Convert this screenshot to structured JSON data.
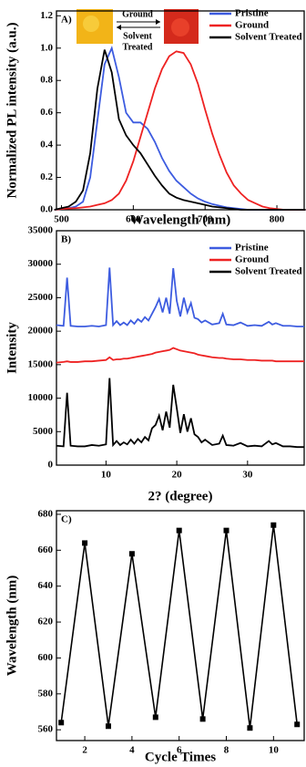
{
  "chart_data": [
    {
      "type": "line",
      "panel_label": "A)",
      "xlabel": "Wavelength (nm)",
      "ylabel": "Normalized PL intensity (a.u.)",
      "annotations": [
        "Ground",
        "Solvent",
        "Treated"
      ],
      "legend": "upper right",
      "xlim": [
        493,
        838
      ],
      "xticks": [
        500,
        600,
        700,
        800
      ],
      "ylim": [
        0,
        1.23
      ],
      "yticks": [
        {
          "value": 0,
          "label": "0.0"
        },
        0.2,
        0.4,
        0.6,
        0.8,
        {
          "value": 1,
          "label": "1.0"
        },
        1.2
      ],
      "x": [
        490,
        500,
        510,
        520,
        530,
        540,
        550,
        560,
        570,
        580,
        590,
        600,
        610,
        620,
        630,
        640,
        650,
        660,
        670,
        680,
        690,
        700,
        710,
        720,
        730,
        740,
        750,
        760,
        770,
        780,
        790,
        800,
        810,
        820,
        830,
        840
      ],
      "series": [
        {
          "name": "Pristine",
          "color": "#3d5ce0",
          "values": [
            0,
            0.005,
            0.01,
            0.02,
            0.05,
            0.2,
            0.55,
            0.9,
            1.0,
            0.82,
            0.6,
            0.54,
            0.54,
            0.5,
            0.42,
            0.32,
            0.24,
            0.18,
            0.14,
            0.1,
            0.07,
            0.05,
            0.035,
            0.025,
            0.015,
            0.01,
            0.005,
            0,
            0,
            0,
            0,
            0,
            0,
            0,
            0,
            0
          ]
        },
        {
          "name": "Ground",
          "color": "#ee2222",
          "values": [
            0,
            0.005,
            0.008,
            0.01,
            0.015,
            0.02,
            0.03,
            0.04,
            0.06,
            0.1,
            0.18,
            0.3,
            0.45,
            0.6,
            0.75,
            0.87,
            0.95,
            0.98,
            0.97,
            0.9,
            0.78,
            0.62,
            0.47,
            0.34,
            0.23,
            0.15,
            0.1,
            0.06,
            0.04,
            0.02,
            0.01,
            0.005,
            0,
            0,
            0,
            0
          ]
        },
        {
          "name": "Solvent Treated",
          "color": "#000000",
          "values": [
            0,
            0.01,
            0.02,
            0.05,
            0.12,
            0.35,
            0.75,
            0.99,
            0.85,
            0.56,
            0.46,
            0.4,
            0.35,
            0.28,
            0.21,
            0.15,
            0.1,
            0.075,
            0.06,
            0.05,
            0.04,
            0.03,
            0.02,
            0.015,
            0.01,
            0.005,
            0,
            0,
            0,
            0,
            0,
            0,
            0,
            0,
            0,
            0
          ]
        }
      ]
    },
    {
      "type": "line",
      "panel_label": "B)",
      "xlabel": "2? (degree)",
      "ylabel": "Intensity",
      "legend": "upper right",
      "xlim": [
        3,
        38
      ],
      "xticks": [
        10,
        20,
        30
      ],
      "ylim": [
        0,
        35000
      ],
      "yticks": [
        0,
        5000,
        10000,
        15000,
        20000,
        25000,
        30000,
        35000
      ],
      "x": [
        3,
        4,
        4.5,
        5,
        6,
        7,
        8,
        9,
        10,
        10.5,
        11,
        11.5,
        12,
        12.5,
        13,
        13.5,
        14,
        14.5,
        15,
        15.5,
        16,
        16.5,
        17,
        17.5,
        18,
        18.5,
        19,
        19.5,
        20,
        20.5,
        21,
        21.5,
        22,
        22.5,
        23,
        23.5,
        24,
        25,
        26,
        26.5,
        27,
        28,
        29,
        30,
        31,
        32,
        33,
        33.5,
        34,
        35,
        36,
        37,
        38
      ],
      "series": [
        {
          "name": "Pristine",
          "color": "#3d5ce0",
          "values": [
            20900,
            20800,
            28000,
            20800,
            20700,
            20700,
            20800,
            20700,
            20900,
            29500,
            20900,
            21500,
            20900,
            21300,
            20900,
            21600,
            21100,
            21800,
            21400,
            22100,
            21600,
            22600,
            23600,
            24800,
            22800,
            25000,
            22600,
            29400,
            24500,
            22200,
            25000,
            22800,
            24200,
            22000,
            21800,
            21300,
            21600,
            21000,
            21200,
            22600,
            21000,
            20900,
            21300,
            20800,
            20900,
            20800,
            21400,
            21000,
            21200,
            20800,
            20800,
            20700,
            20700
          ]
        },
        {
          "name": "Ground",
          "color": "#ee2222",
          "values": [
            15300,
            15400,
            15500,
            15400,
            15400,
            15500,
            15500,
            15600,
            15700,
            16100,
            15700,
            15800,
            15800,
            15900,
            15900,
            16000,
            16100,
            16200,
            16300,
            16400,
            16500,
            16600,
            16800,
            16900,
            17000,
            17100,
            17200,
            17500,
            17300,
            17100,
            17000,
            16900,
            16800,
            16700,
            16500,
            16400,
            16300,
            16100,
            16000,
            16000,
            15900,
            15800,
            15800,
            15700,
            15700,
            15600,
            15600,
            15600,
            15500,
            15500,
            15500,
            15500,
            15500
          ]
        },
        {
          "name": "Solvent Treated",
          "color": "#000000",
          "values": [
            2900,
            2800,
            10800,
            2900,
            2800,
            2800,
            3000,
            2900,
            3100,
            13000,
            3000,
            3600,
            3000,
            3400,
            3100,
            3800,
            3200,
            3900,
            3400,
            4200,
            3700,
            5500,
            6000,
            7400,
            5200,
            8000,
            5600,
            12000,
            8500,
            4800,
            7600,
            5000,
            7000,
            4600,
            4200,
            3400,
            3800,
            3000,
            3200,
            4400,
            3000,
            2900,
            3300,
            2800,
            2900,
            2800,
            3600,
            3100,
            3300,
            2800,
            2800,
            2700,
            2700
          ]
        }
      ]
    },
    {
      "type": "line",
      "panel_label": "C)",
      "xlabel": "Cycle Times",
      "ylabel": "Wavelength (nm)",
      "marker": "square",
      "xlim": [
        0.8,
        11.3
      ],
      "xticks": [
        2,
        4,
        6,
        8,
        10
      ],
      "ylim": [
        554,
        682
      ],
      "yticks": [
        560,
        580,
        600,
        620,
        640,
        660,
        680
      ],
      "x": [
        1,
        2,
        3,
        4,
        5,
        6,
        7,
        8,
        9,
        10,
        11
      ],
      "series": [
        {
          "color": "#000000",
          "values": [
            564,
            664,
            562,
            658,
            567,
            671,
            566,
            671,
            561,
            674,
            563
          ]
        }
      ]
    }
  ]
}
